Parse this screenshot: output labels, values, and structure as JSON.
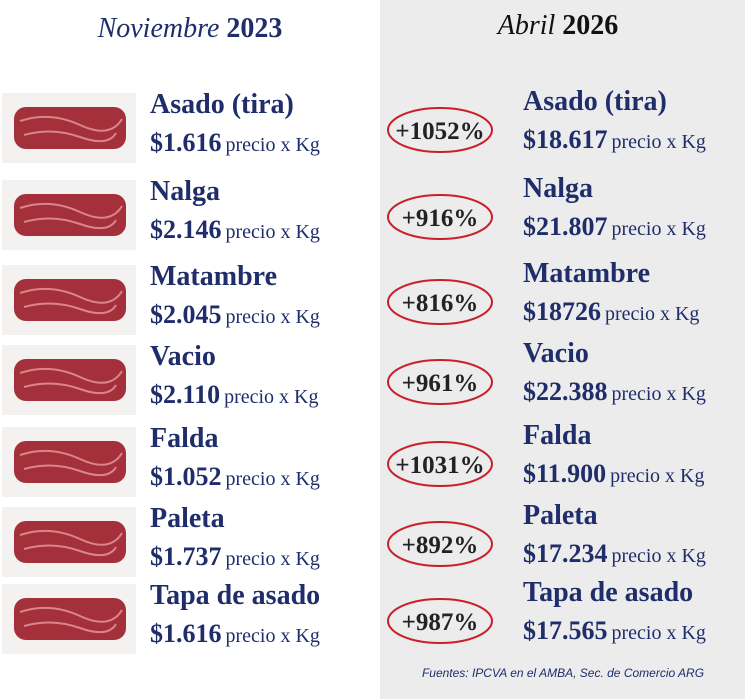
{
  "header": {
    "left_month": "Noviembre",
    "left_year": "2023",
    "right_month": "Abril",
    "right_year": "2026"
  },
  "unit": "precio x Kg",
  "items": [
    {
      "name": "Asado (tira)",
      "price_before": "$1.616",
      "change": "+1052%",
      "price_after": "$18.617"
    },
    {
      "name": "Nalga",
      "price_before": "$2.146",
      "change": "+916%",
      "price_after": "$21.807"
    },
    {
      "name": "Matambre",
      "price_before": "$2.045",
      "change": "+816%",
      "price_after": "$18726"
    },
    {
      "name": "Vacio",
      "price_before": "$2.110",
      "change": "+961%",
      "price_after": "$22.388"
    },
    {
      "name": "Falda",
      "price_before": "$1.052",
      "change": "+1031%",
      "price_after": "$11.900"
    },
    {
      "name": "Paleta",
      "price_before": "$1.737",
      "change": "+892%",
      "price_after": "$17.234"
    },
    {
      "name": "Tapa de asado",
      "price_before": "$1.616",
      "change": "+987%",
      "price_after": "$17.565"
    }
  ],
  "footer": "Fuentes: IPCVA en el AMBA, Sec. de Comercio ARG"
}
